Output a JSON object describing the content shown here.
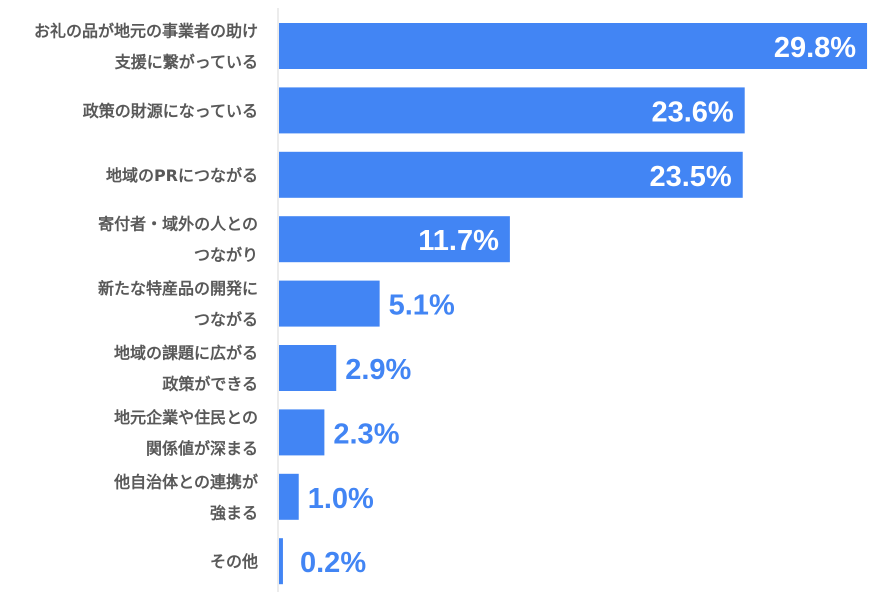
{
  "chart_data": {
    "type": "bar",
    "orientation": "horizontal",
    "categories": [
      [
        "お礼の品が地元の事業者の助け",
        "支援に繋がっている"
      ],
      [
        "政策の財源になっている"
      ],
      [
        "地域のPRにつながる"
      ],
      [
        "寄付者・域外の人との",
        "つながり"
      ],
      [
        "新たな特産品の開発に",
        "つながる"
      ],
      [
        "地域の課題に広がる",
        "政策ができる"
      ],
      [
        "地元企業や住民との",
        "関係値が深まる"
      ],
      [
        "他自治体との連携が",
        "強まる"
      ],
      [
        "その他"
      ]
    ],
    "values": [
      29.8,
      23.6,
      23.5,
      11.7,
      5.1,
      2.9,
      2.3,
      1.0,
      0.2
    ],
    "data_labels": [
      "29.8%",
      "23.6%",
      "23.5%",
      "11.7%",
      "5.1%",
      "2.9%",
      "2.3%",
      "1.0%",
      "0.2%"
    ],
    "xlim": [
      0,
      30
    ],
    "grid": false,
    "colors": {
      "bar": "#4285F4",
      "label_inside": "#FFFFFF",
      "label_outside": "#4285F4",
      "category_text": "#595959",
      "axis": "#D9D9D9"
    }
  }
}
